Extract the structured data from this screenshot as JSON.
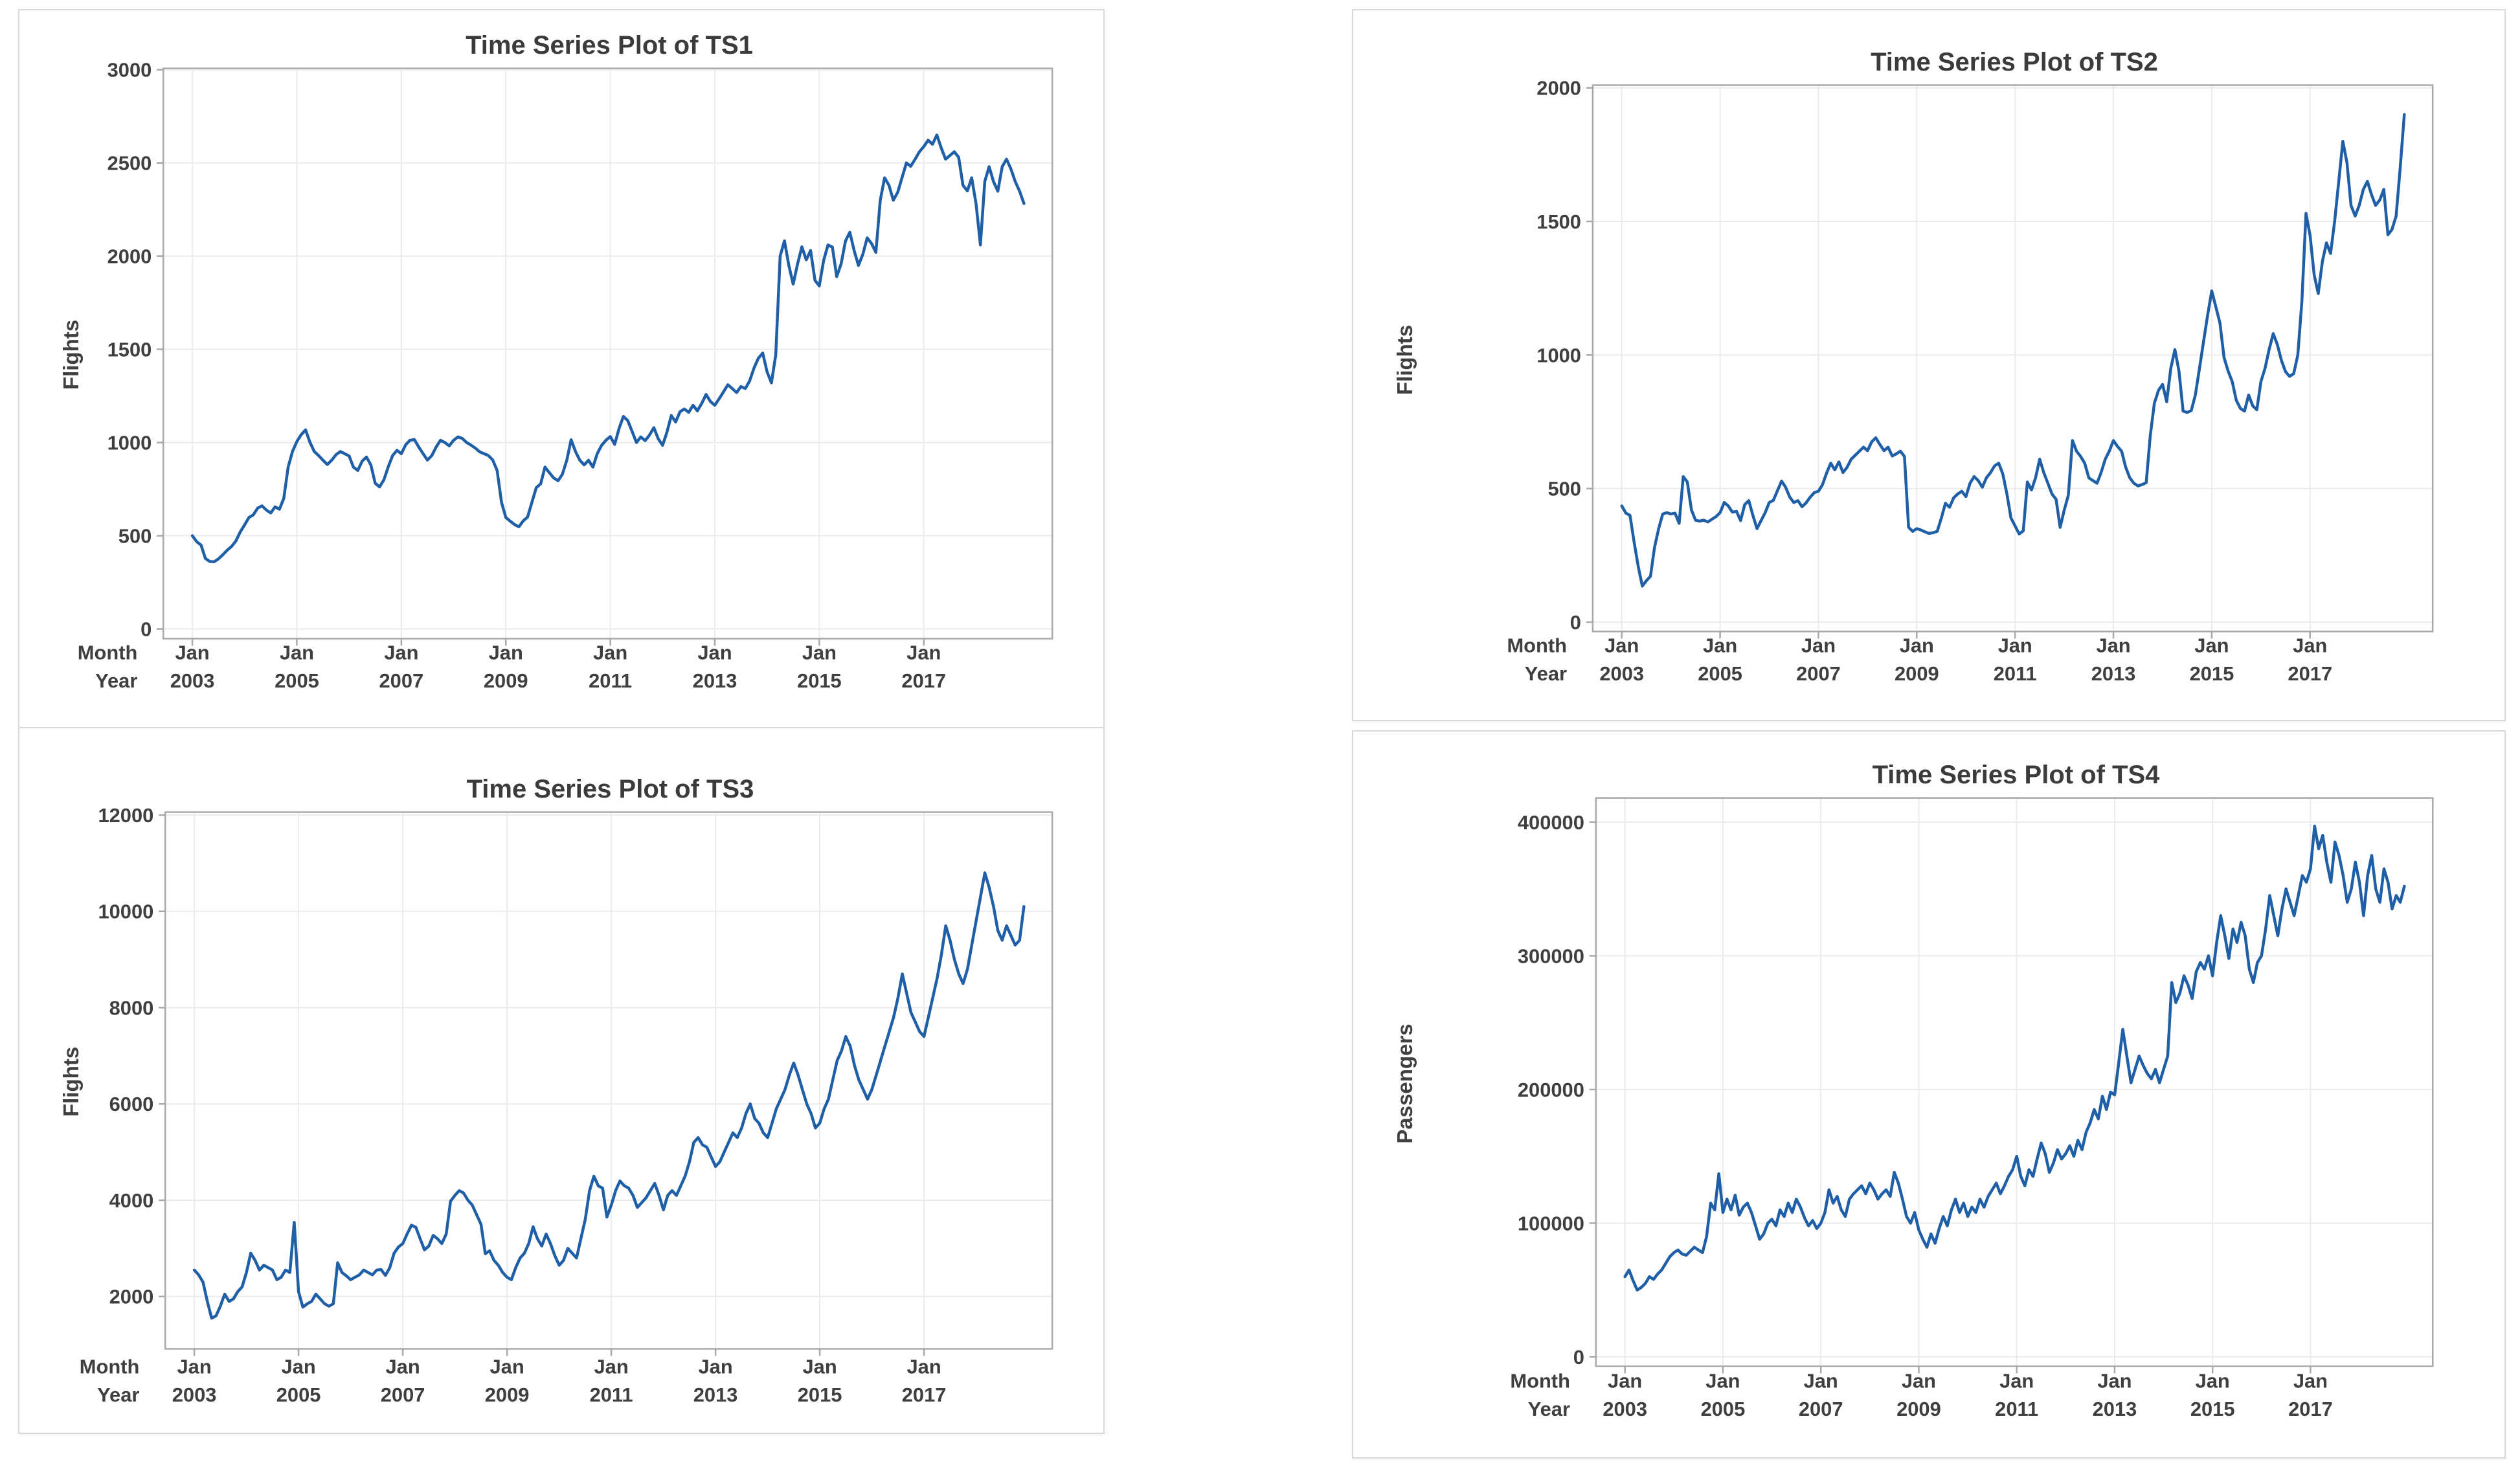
{
  "colors": {
    "line": "#1F5FA8",
    "title_text": "#3B3B3B",
    "tick_text": "#3F3F3F",
    "axis_border": "#A9A9A9",
    "gridline": "#EBEBEB",
    "panel_border": "#D9D9D9",
    "page_background": "#FFFFFF"
  },
  "chart_data": [
    {
      "type": "line",
      "id": "TS1",
      "title": "Time Series Plot of TS1",
      "ylabel": "Flights",
      "xaxis_row_labels": {
        "month": "Month",
        "year": "Year"
      },
      "month_tick_label": "Jan",
      "year_tick_labels": [
        "2003",
        "2005",
        "2007",
        "2009",
        "2011",
        "2013",
        "2015",
        "2017"
      ],
      "x_start": "Jan 2003",
      "x_end": "Dec 2018",
      "points_per_year": 12,
      "yticks": [
        0,
        500,
        1000,
        1500,
        2000,
        2500,
        3000
      ],
      "ylim": [
        -52,
        3007
      ],
      "grid": true,
      "legend": "none",
      "values": [
        500,
        468,
        450,
        378,
        362,
        360,
        376,
        398,
        422,
        442,
        472,
        520,
        558,
        598,
        612,
        648,
        660,
        638,
        622,
        655,
        642,
        700,
        868,
        952,
        1005,
        1042,
        1068,
        1002,
        952,
        930,
        905,
        882,
        905,
        935,
        952,
        940,
        928,
        868,
        850,
        900,
        922,
        880,
        782,
        762,
        800,
        870,
        930,
        958,
        940,
        988,
        1012,
        1016,
        976,
        940,
        906,
        930,
        976,
        1012,
        1000,
        982,
        1012,
        1030,
        1022,
        1000,
        986,
        970,
        950,
        940,
        930,
        906,
        850,
        680,
        598,
        578,
        560,
        548,
        580,
        600,
        680,
        758,
        778,
        868,
        838,
        810,
        795,
        830,
        905,
        1015,
        952,
        905,
        880,
        905,
        868,
        940,
        985,
        1012,
        1032,
        990,
        1075,
        1140,
        1118,
        1060,
        1000,
        1030,
        1010,
        1040,
        1080,
        1020,
        985,
        1055,
        1145,
        1110,
        1165,
        1180,
        1162,
        1200,
        1170,
        1210,
        1258,
        1220,
        1200,
        1235,
        1272,
        1310,
        1290,
        1268,
        1300,
        1290,
        1330,
        1400,
        1452,
        1480,
        1380,
        1320,
        1470,
        2000,
        2082,
        1950,
        1850,
        1958,
        2050,
        1980,
        2030,
        1870,
        1840,
        1978,
        2060,
        2048,
        1890,
        1958,
        2080,
        2128,
        2030,
        1950,
        2010,
        2098,
        2068,
        2020,
        2300,
        2420,
        2380,
        2300,
        2342,
        2420,
        2500,
        2482,
        2520,
        2560,
        2588,
        2622,
        2600,
        2650,
        2580,
        2520,
        2540,
        2560,
        2530,
        2380,
        2350,
        2420,
        2280,
        2060,
        2400,
        2480,
        2400,
        2348,
        2480,
        2520,
        2468,
        2400,
        2348,
        2282
      ]
    },
    {
      "type": "line",
      "id": "TS2",
      "title": "Time Series Plot of TS2",
      "ylabel": "Flights",
      "xaxis_row_labels": {
        "month": "Month",
        "year": "Year"
      },
      "month_tick_label": "Jan",
      "year_tick_labels": [
        "2003",
        "2005",
        "2007",
        "2009",
        "2011",
        "2013",
        "2015",
        "2017"
      ],
      "x_start": "Jan 2003",
      "x_end": "Dec 2018",
      "points_per_year": 12,
      "yticks": [
        0,
        500,
        1000,
        1500,
        2000
      ],
      "ylim": [
        -35,
        2010
      ],
      "grid": true,
      "legend": "none",
      "values": [
        435,
        408,
        400,
        300,
        210,
        135,
        155,
        172,
        280,
        350,
        405,
        410,
        405,
        408,
        370,
        545,
        525,
        420,
        382,
        378,
        382,
        375,
        385,
        395,
        410,
        448,
        435,
        412,
        415,
        380,
        440,
        455,
        400,
        350,
        380,
        410,
        448,
        456,
        492,
        528,
        505,
        468,
        448,
        455,
        432,
        447,
        468,
        485,
        490,
        515,
        558,
        595,
        570,
        600,
        560,
        580,
        610,
        625,
        640,
        655,
        642,
        675,
        690,
        665,
        642,
        655,
        622,
        630,
        640,
        620,
        355,
        340,
        350,
        345,
        338,
        332,
        335,
        340,
        390,
        445,
        430,
        465,
        480,
        490,
        470,
        520,
        545,
        530,
        505,
        540,
        560,
        585,
        595,
        555,
        480,
        390,
        360,
        330,
        342,
        525,
        495,
        540,
        610,
        560,
        520,
        480,
        460,
        355,
        420,
        475,
        680,
        640,
        620,
        595,
        540,
        530,
        520,
        560,
        610,
        640,
        680,
        658,
        640,
        580,
        540,
        520,
        510,
        515,
        522,
        700,
        820,
        868,
        890,
        825,
        950,
        1020,
        940,
        790,
        785,
        792,
        850,
        950,
        1050,
        1150,
        1240,
        1180,
        1120,
        990,
        940,
        900,
        830,
        800,
        790,
        850,
        810,
        795,
        900,
        950,
        1020,
        1080,
        1040,
        980,
        938,
        920,
        930,
        1000,
        1200,
        1530,
        1448,
        1300,
        1230,
        1350,
        1420,
        1380,
        1500,
        1650,
        1800,
        1720,
        1560,
        1520,
        1560,
        1620,
        1650,
        1600,
        1560,
        1580,
        1620,
        1450,
        1470,
        1520,
        1700,
        1900
      ]
    },
    {
      "type": "line",
      "id": "TS3",
      "title": "Time Series Plot of TS3",
      "ylabel": "Flights",
      "xaxis_row_labels": {
        "month": "Month",
        "year": "Year"
      },
      "month_tick_label": "Jan",
      "year_tick_labels": [
        "2003",
        "2005",
        "2007",
        "2009",
        "2011",
        "2013",
        "2015",
        "2017"
      ],
      "x_start": "Jan 2003",
      "x_end": "Dec 2018",
      "points_per_year": 12,
      "yticks": [
        2000,
        4000,
        6000,
        8000,
        10000,
        12000
      ],
      "ylim": [
        915,
        12060
      ],
      "grid": true,
      "legend": "none",
      "values": [
        2550,
        2450,
        2300,
        1900,
        1550,
        1600,
        1800,
        2050,
        1900,
        1950,
        2100,
        2200,
        2500,
        2900,
        2750,
        2550,
        2650,
        2600,
        2550,
        2350,
        2400,
        2550,
        2500,
        3540,
        2100,
        1780,
        1850,
        1900,
        2050,
        1950,
        1850,
        1800,
        1850,
        2700,
        2500,
        2430,
        2350,
        2400,
        2450,
        2550,
        2500,
        2450,
        2550,
        2560,
        2440,
        2600,
        2900,
        3030,
        3100,
        3300,
        3480,
        3440,
        3200,
        2970,
        3050,
        3270,
        3200,
        3100,
        3300,
        3980,
        4100,
        4200,
        4150,
        4000,
        3900,
        3700,
        3500,
        2890,
        2950,
        2750,
        2650,
        2500,
        2400,
        2350,
        2600,
        2800,
        2900,
        3100,
        3450,
        3200,
        3050,
        3300,
        3100,
        2850,
        2650,
        2750,
        3000,
        2900,
        2800,
        3200,
        3600,
        4200,
        4500,
        4300,
        4250,
        3650,
        3900,
        4200,
        4400,
        4300,
        4250,
        4100,
        3850,
        3950,
        4050,
        4200,
        4350,
        4100,
        3800,
        4100,
        4200,
        4100,
        4300,
        4500,
        4800,
        5200,
        5300,
        5150,
        5100,
        4900,
        4700,
        4800,
        5000,
        5200,
        5400,
        5300,
        5500,
        5800,
        6000,
        5700,
        5600,
        5400,
        5300,
        5600,
        5900,
        6100,
        6300,
        6600,
        6850,
        6600,
        6300,
        6000,
        5800,
        5500,
        5600,
        5900,
        6100,
        6500,
        6900,
        7100,
        7400,
        7200,
        6800,
        6500,
        6300,
        6100,
        6300,
        6600,
        6900,
        7200,
        7500,
        7800,
        8200,
        8700,
        8300,
        7900,
        7700,
        7500,
        7400,
        7800,
        8200,
        8600,
        9100,
        9700,
        9400,
        9000,
        8700,
        8500,
        8800,
        9300,
        9800,
        10300,
        10800,
        10500,
        10100,
        9600,
        9400,
        9700,
        9500,
        9300,
        9400,
        10100
      ]
    },
    {
      "type": "line",
      "id": "TS4",
      "title": "Time Series Plot of TS4",
      "ylabel": "Passengers",
      "xaxis_row_labels": {
        "month": "Month",
        "year": "Year"
      },
      "month_tick_label": "Jan",
      "year_tick_labels": [
        "2003",
        "2005",
        "2007",
        "2009",
        "2011",
        "2013",
        "2015",
        "2017"
      ],
      "x_start": "Jan 2003",
      "x_end": "Dec 2018",
      "points_per_year": 12,
      "yticks": [
        0,
        100000,
        200000,
        300000,
        400000
      ],
      "ylim": [
        -7000,
        418000
      ],
      "grid": true,
      "legend": "none",
      "values": [
        60000,
        65000,
        57000,
        50000,
        52000,
        55000,
        60000,
        58000,
        62000,
        65000,
        70000,
        75000,
        78000,
        80000,
        77000,
        76000,
        79000,
        82000,
        80000,
        78000,
        90000,
        115000,
        110000,
        137000,
        108000,
        118000,
        110000,
        121000,
        106000,
        112000,
        115000,
        108000,
        98000,
        88000,
        92000,
        100000,
        103000,
        98000,
        110000,
        105000,
        115000,
        108000,
        118000,
        112000,
        104000,
        98000,
        102000,
        96000,
        100000,
        108000,
        125000,
        115000,
        120000,
        110000,
        105000,
        118000,
        122000,
        125000,
        128000,
        122000,
        130000,
        125000,
        118000,
        122000,
        125000,
        120000,
        138000,
        130000,
        118000,
        105000,
        100000,
        108000,
        95000,
        88000,
        82000,
        92000,
        85000,
        96000,
        105000,
        98000,
        110000,
        118000,
        108000,
        115000,
        105000,
        112000,
        108000,
        118000,
        112000,
        120000,
        125000,
        130000,
        122000,
        128000,
        135000,
        140000,
        150000,
        135000,
        128000,
        140000,
        135000,
        148000,
        160000,
        152000,
        138000,
        145000,
        155000,
        148000,
        152000,
        158000,
        150000,
        162000,
        155000,
        168000,
        175000,
        185000,
        178000,
        195000,
        185000,
        198000,
        196000,
        220000,
        245000,
        225000,
        205000,
        215000,
        225000,
        218000,
        212000,
        208000,
        215000,
        205000,
        215000,
        225000,
        280000,
        265000,
        272000,
        285000,
        278000,
        268000,
        288000,
        295000,
        290000,
        300000,
        285000,
        310000,
        330000,
        315000,
        298000,
        320000,
        310000,
        325000,
        315000,
        290000,
        280000,
        295000,
        300000,
        320000,
        345000,
        330000,
        315000,
        335000,
        350000,
        340000,
        330000,
        345000,
        360000,
        355000,
        365000,
        397000,
        380000,
        390000,
        370000,
        355000,
        385000,
        375000,
        360000,
        340000,
        350000,
        370000,
        355000,
        330000,
        360000,
        375000,
        350000,
        340000,
        365000,
        355000,
        335000,
        345000,
        340000,
        352000
      ]
    }
  ]
}
